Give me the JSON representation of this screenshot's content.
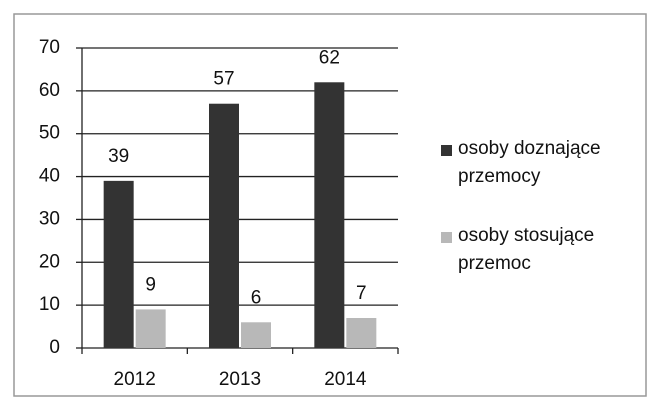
{
  "chart_data": {
    "type": "bar",
    "categories": [
      "2012",
      "2013",
      "2014"
    ],
    "series": [
      {
        "name": "osoby doznające przemocy",
        "color": "#333333",
        "values": [
          39,
          57,
          62
        ]
      },
      {
        "name": "osoby stosujące przemoc",
        "color": "#b8b8b8",
        "values": [
          9,
          6,
          7
        ]
      }
    ],
    "ylim": [
      0,
      70
    ],
    "yticks": [
      0,
      10,
      20,
      30,
      40,
      50,
      60,
      70
    ],
    "grid": true,
    "legend": "right"
  }
}
